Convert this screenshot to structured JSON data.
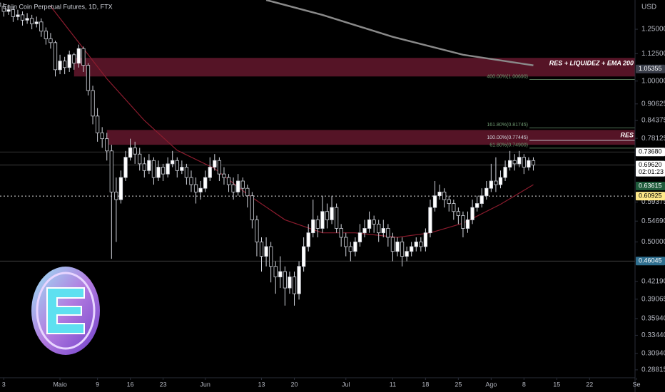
{
  "header": {
    "symbol": "Enjin Coin Perpetual Futures, 1D, FTX",
    "currency": "USD"
  },
  "chart_data": {
    "type": "candlestick",
    "log_scale": true,
    "up_color": "#ffffff",
    "down_color": "#000000",
    "x": [
      -13,
      -12,
      -11,
      -10,
      -9,
      -8,
      -7,
      -6,
      -5,
      -4,
      -3,
      -2,
      -1,
      0,
      1,
      2,
      3,
      4,
      5,
      6,
      7,
      8,
      9,
      10,
      11,
      12,
      13,
      14,
      15,
      16,
      17,
      18,
      19,
      20,
      21,
      22,
      23,
      24,
      25,
      26,
      27,
      28,
      29,
      30,
      31,
      32,
      33,
      34,
      35,
      36,
      37,
      38,
      39,
      40,
      41,
      42,
      43,
      44,
      45,
      46,
      47,
      48,
      49,
      50,
      51,
      52,
      53,
      54,
      55,
      56,
      57,
      58,
      59,
      60,
      61,
      62,
      63,
      64,
      65,
      66,
      67,
      68,
      69,
      70,
      71,
      72,
      73,
      74,
      75,
      76,
      77,
      78,
      79,
      80,
      81,
      82,
      83,
      84,
      85,
      86,
      87,
      88,
      89,
      90,
      91,
      92,
      93,
      94,
      95,
      96,
      97,
      98,
      99,
      100,
      101
    ],
    "open": [
      1.4,
      1.38,
      1.35,
      1.36,
      1.32,
      1.33,
      1.3,
      1.31,
      1.28,
      1.29,
      1.24,
      1.2,
      1.18,
      1.05,
      1.09,
      1.06,
      1.12,
      1.08,
      1.15,
      1.07,
      0.96,
      0.86,
      0.8,
      0.78,
      0.74,
      0.62,
      0.6,
      0.66,
      0.72,
      0.75,
      0.73,
      0.7,
      0.68,
      0.71,
      0.66,
      0.69,
      0.67,
      0.7,
      0.71,
      0.68,
      0.69,
      0.66,
      0.64,
      0.62,
      0.63,
      0.66,
      0.69,
      0.71,
      0.67,
      0.66,
      0.64,
      0.62,
      0.65,
      0.63,
      0.61,
      0.55,
      0.5,
      0.47,
      0.49,
      0.45,
      0.43,
      0.44,
      0.41,
      0.43,
      0.4,
      0.45,
      0.49,
      0.52,
      0.55,
      0.53,
      0.57,
      0.55,
      0.58,
      0.53,
      0.51,
      0.49,
      0.48,
      0.5,
      0.52,
      0.53,
      0.55,
      0.54,
      0.52,
      0.53,
      0.51,
      0.48,
      0.5,
      0.47,
      0.48,
      0.49,
      0.5,
      0.49,
      0.52,
      0.58,
      0.61,
      0.62,
      0.6,
      0.59,
      0.57,
      0.56,
      0.53,
      0.55,
      0.58,
      0.59,
      0.61,
      0.63,
      0.65,
      0.64,
      0.66,
      0.69,
      0.71,
      0.7,
      0.72,
      0.69,
      0.71
    ],
    "high": [
      1.43,
      1.4,
      1.39,
      1.38,
      1.36,
      1.35,
      1.34,
      1.33,
      1.32,
      1.31,
      1.26,
      1.23,
      1.19,
      1.12,
      1.11,
      1.14,
      1.13,
      1.17,
      1.16,
      1.08,
      0.98,
      0.89,
      0.82,
      0.8,
      0.76,
      0.66,
      0.68,
      0.74,
      0.78,
      0.77,
      0.75,
      0.72,
      0.73,
      0.72,
      0.71,
      0.7,
      0.72,
      0.74,
      0.72,
      0.71,
      0.7,
      0.68,
      0.66,
      0.65,
      0.68,
      0.72,
      0.73,
      0.72,
      0.69,
      0.67,
      0.66,
      0.67,
      0.66,
      0.64,
      0.62,
      0.56,
      0.51,
      0.51,
      0.5,
      0.46,
      0.47,
      0.45,
      0.44,
      0.44,
      0.46,
      0.51,
      0.54,
      0.6,
      0.56,
      0.61,
      0.59,
      0.61,
      0.59,
      0.54,
      0.52,
      0.5,
      0.51,
      0.54,
      0.55,
      0.57,
      0.56,
      0.55,
      0.55,
      0.54,
      0.52,
      0.51,
      0.51,
      0.49,
      0.5,
      0.51,
      0.51,
      0.53,
      0.6,
      0.65,
      0.64,
      0.63,
      0.61,
      0.6,
      0.58,
      0.57,
      0.57,
      0.6,
      0.61,
      0.63,
      0.65,
      0.7,
      0.72,
      0.68,
      0.71,
      0.74,
      0.73,
      0.74,
      0.73,
      0.72,
      0.72
    ],
    "low": [
      1.36,
      1.32,
      1.33,
      1.29,
      1.3,
      1.27,
      1.28,
      1.25,
      1.26,
      1.21,
      1.17,
      1.15,
      1.02,
      1.03,
      1.03,
      1.04,
      1.05,
      1.06,
      1.04,
      0.94,
      0.83,
      0.77,
      0.75,
      0.71,
      0.465,
      0.5,
      0.59,
      0.65,
      0.71,
      0.7,
      0.68,
      0.66,
      0.67,
      0.64,
      0.65,
      0.65,
      0.66,
      0.69,
      0.66,
      0.67,
      0.64,
      0.62,
      0.59,
      0.6,
      0.62,
      0.65,
      0.68,
      0.65,
      0.64,
      0.62,
      0.6,
      0.61,
      0.61,
      0.58,
      0.53,
      0.47,
      0.44,
      0.45,
      0.42,
      0.4,
      0.41,
      0.38,
      0.4,
      0.38,
      0.39,
      0.44,
      0.48,
      0.51,
      0.51,
      0.52,
      0.53,
      0.54,
      0.52,
      0.49,
      0.47,
      0.46,
      0.47,
      0.49,
      0.51,
      0.52,
      0.52,
      0.5,
      0.51,
      0.49,
      0.46,
      0.47,
      0.45,
      0.46,
      0.47,
      0.48,
      0.48,
      0.48,
      0.51,
      0.57,
      0.6,
      0.58,
      0.57,
      0.55,
      0.54,
      0.51,
      0.52,
      0.54,
      0.57,
      0.58,
      0.6,
      0.62,
      0.62,
      0.63,
      0.65,
      0.68,
      0.68,
      0.69,
      0.67,
      0.68,
      0.68
    ],
    "close": [
      1.38,
      1.35,
      1.36,
      1.32,
      1.33,
      1.3,
      1.31,
      1.28,
      1.29,
      1.24,
      1.2,
      1.18,
      1.05,
      1.09,
      1.06,
      1.12,
      1.08,
      1.15,
      1.07,
      0.96,
      0.86,
      0.8,
      0.78,
      0.74,
      0.62,
      0.6,
      0.66,
      0.72,
      0.75,
      0.73,
      0.7,
      0.68,
      0.71,
      0.66,
      0.69,
      0.67,
      0.7,
      0.71,
      0.68,
      0.69,
      0.66,
      0.64,
      0.62,
      0.63,
      0.66,
      0.69,
      0.71,
      0.67,
      0.66,
      0.64,
      0.62,
      0.65,
      0.63,
      0.61,
      0.55,
      0.5,
      0.47,
      0.49,
      0.45,
      0.43,
      0.44,
      0.41,
      0.43,
      0.4,
      0.45,
      0.49,
      0.52,
      0.55,
      0.53,
      0.57,
      0.55,
      0.58,
      0.53,
      0.51,
      0.49,
      0.48,
      0.5,
      0.52,
      0.53,
      0.55,
      0.54,
      0.52,
      0.53,
      0.51,
      0.48,
      0.5,
      0.47,
      0.48,
      0.49,
      0.5,
      0.49,
      0.52,
      0.58,
      0.61,
      0.62,
      0.6,
      0.59,
      0.57,
      0.56,
      0.53,
      0.55,
      0.58,
      0.59,
      0.61,
      0.63,
      0.65,
      0.64,
      0.66,
      0.69,
      0.71,
      0.7,
      0.72,
      0.69,
      0.71,
      0.6962
    ],
    "xlim": [
      -12.8,
      122.7
    ],
    "xticks": [
      {
        "value": -12,
        "label": "3"
      },
      {
        "value": 0,
        "label": "Maio"
      },
      {
        "value": 8,
        "label": "9"
      },
      {
        "value": 15,
        "label": "16"
      },
      {
        "value": 22,
        "label": "23"
      },
      {
        "value": 31,
        "label": "Jun"
      },
      {
        "value": 43,
        "label": "13"
      },
      {
        "value": 50,
        "label": "20"
      },
      {
        "value": 61,
        "label": "Jul"
      },
      {
        "value": 71,
        "label": "11"
      },
      {
        "value": 78,
        "label": "18"
      },
      {
        "value": 85,
        "label": "25"
      },
      {
        "value": 92,
        "label": "Ago"
      },
      {
        "value": 99,
        "label": "8"
      },
      {
        "value": 106,
        "label": "15"
      },
      {
        "value": 113,
        "label": "22"
      },
      {
        "value": 123,
        "label": "Se"
      }
    ],
    "ylim": [
      0.2785,
      1.418
    ],
    "yticks": [
      {
        "value": 1.25,
        "label": "1.25000"
      },
      {
        "value": 1.125,
        "label": "1.12500"
      },
      {
        "value": 1.0,
        "label": "1.00000"
      },
      0.90625,
      0.84375,
      0.78125,
      0.59375,
      {
        "value": 0.5469,
        "label": "0.54690"
      },
      {
        "value": 0.5,
        "label": "0.50000"
      },
      {
        "value": 0.4219,
        "label": "0.42190"
      },
      0.39065,
      {
        "value": 0.3594,
        "label": "0.35940"
      },
      {
        "value": 0.3344,
        "label": "0.33440"
      },
      {
        "value": 0.3094,
        "label": "0.30940"
      },
      0.28815
    ],
    "lines": [
      {
        "color": "#8c1c2e",
        "x": [
          -2,
          10,
          18,
          25,
          33,
          40,
          48,
          56,
          63,
          72,
          79,
          86,
          94,
          101
        ],
        "values": [
          1.38,
          1.01,
          0.844,
          0.742,
          0.686,
          0.614,
          0.55,
          0.52,
          0.52,
          0.51,
          0.52,
          0.542,
          0.588,
          0.64
        ]
      },
      {
        "color": "#8a8a8a",
        "x": [
          44,
          56,
          71,
          86,
          101
        ],
        "values": [
          1.418,
          1.33,
          1.21,
          1.12,
          1.07
        ]
      }
    ],
    "zones": [
      {
        "label": "RES + LIQUIDEZ + EMA 200",
        "start": 3,
        "range": [
          1.02,
          1.105
        ]
      },
      {
        "label": "RES",
        "start": 10,
        "range": [
          0.76,
          0.81
        ]
      }
    ],
    "fib_levels": [
      {
        "value": 1.0069,
        "label": "400.00%(1.00690)",
        "color": "#6f9a72"
      },
      {
        "value": 0.81745,
        "label": "161.80%(0.81745)",
        "color": "#6f9a72"
      },
      {
        "value": 0.77445,
        "label": "100.00%(0.77445)",
        "color": "#d1d4dc"
      },
      {
        "value": 0.749,
        "label": "61.80%(0.74900)",
        "color": "#6f9a72"
      }
    ],
    "price_labels": [
      {
        "value": 1.05355,
        "label": "1.05355",
        "bg": "#3a3e4a",
        "fg": "#ffffff",
        "line": "none"
      },
      {
        "value": 0.7368,
        "label": "0.73680",
        "bg": "#ffffff",
        "fg": "#000000",
        "line": "solid"
      },
      {
        "value": 0.6962,
        "label": "0.69620",
        "countdown": "02:01:23",
        "bg": "#ffffff",
        "fg": "#000000",
        "line": "solid"
      },
      {
        "value": 0.63615,
        "label": "0.63615",
        "bg": "#1e5a3a",
        "fg": "#ffffff",
        "line": "none"
      },
      {
        "value": 0.60925,
        "label": "0.60925",
        "bg": "#ffe98a",
        "fg": "#000000",
        "line": "dotted"
      },
      {
        "value": 0.46045,
        "label": "0.46045",
        "bg": "#2f6f8f",
        "fg": "#ffffff",
        "line": "solid"
      }
    ]
  }
}
